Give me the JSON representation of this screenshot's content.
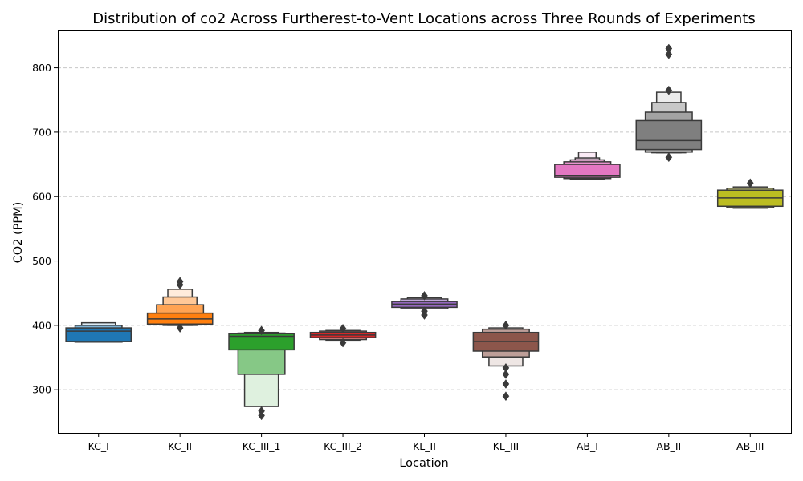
{
  "chart_data": {
    "type": "boxen",
    "title": "Distribution of co2 Across Furtherest-to-Vent Locations across Three Rounds of Experiments",
    "xlabel": "Location",
    "ylabel": "CO2 (PPM)",
    "ylim": [
      233,
      858
    ],
    "yticks": [
      300,
      400,
      500,
      600,
      700,
      800
    ],
    "grid": "y-dashed",
    "categories": [
      "KC_I",
      "KC_II",
      "KC_III_1",
      "KC_III_2",
      "KL_II",
      "KL_III",
      "AB_I",
      "AB_II",
      "AB_III"
    ],
    "series": [
      {
        "category": "KC_I",
        "color": "#1f77b4",
        "median": 391,
        "levels": [
          [
            375,
            396
          ],
          [
            374,
            400
          ],
          [
            374,
            404
          ]
        ],
        "outliers": []
      },
      {
        "category": "KC_II",
        "color": "#ff7f0e",
        "median": 410,
        "levels": [
          [
            402,
            419
          ],
          [
            401,
            432
          ],
          [
            400,
            444
          ],
          [
            400,
            456
          ]
        ],
        "outliers": [
          396,
          463,
          468
        ]
      },
      {
        "category": "KC_III_1",
        "color": "#2ca02c",
        "median": 383,
        "levels": [
          [
            362,
            387
          ],
          [
            324,
            388
          ],
          [
            274,
            389
          ]
        ],
        "outliers": [
          260,
          267,
          392
        ]
      },
      {
        "category": "KC_III_2",
        "color": "#d62728",
        "median": 385,
        "levels": [
          [
            381,
            389
          ],
          [
            378,
            391
          ],
          [
            377,
            392
          ]
        ],
        "outliers": [
          373,
          395
        ]
      },
      {
        "category": "KL_II",
        "color": "#9467bd",
        "median": 433,
        "levels": [
          [
            428,
            437
          ],
          [
            426,
            441
          ],
          [
            426,
            443
          ]
        ],
        "outliers": [
          416,
          422,
          446
        ]
      },
      {
        "category": "KL_III",
        "color": "#8c564b",
        "median": 375,
        "levels": [
          [
            360,
            389
          ],
          [
            351,
            394
          ],
          [
            337,
            396
          ]
        ],
        "outliers": [
          290,
          309,
          324,
          334,
          400
        ]
      },
      {
        "category": "AB_I",
        "color": "#e377c2",
        "median": 633,
        "levels": [
          [
            630,
            650
          ],
          [
            628,
            654
          ],
          [
            627,
            657
          ],
          [
            627,
            660
          ],
          [
            627,
            669
          ]
        ],
        "outliers": []
      },
      {
        "category": "AB_II",
        "color": "#7f7f7f",
        "median": 687,
        "levels": [
          [
            673,
            718
          ],
          [
            669,
            731
          ],
          [
            668,
            746
          ],
          [
            668,
            762
          ]
        ],
        "outliers": [
          661,
          765,
          821,
          830
        ]
      },
      {
        "category": "AB_III",
        "color": "#bcbd22",
        "median": 598,
        "levels": [
          [
            585,
            610
          ],
          [
            583,
            613
          ],
          [
            582,
            615
          ]
        ],
        "outliers": [
          621
        ]
      }
    ]
  }
}
